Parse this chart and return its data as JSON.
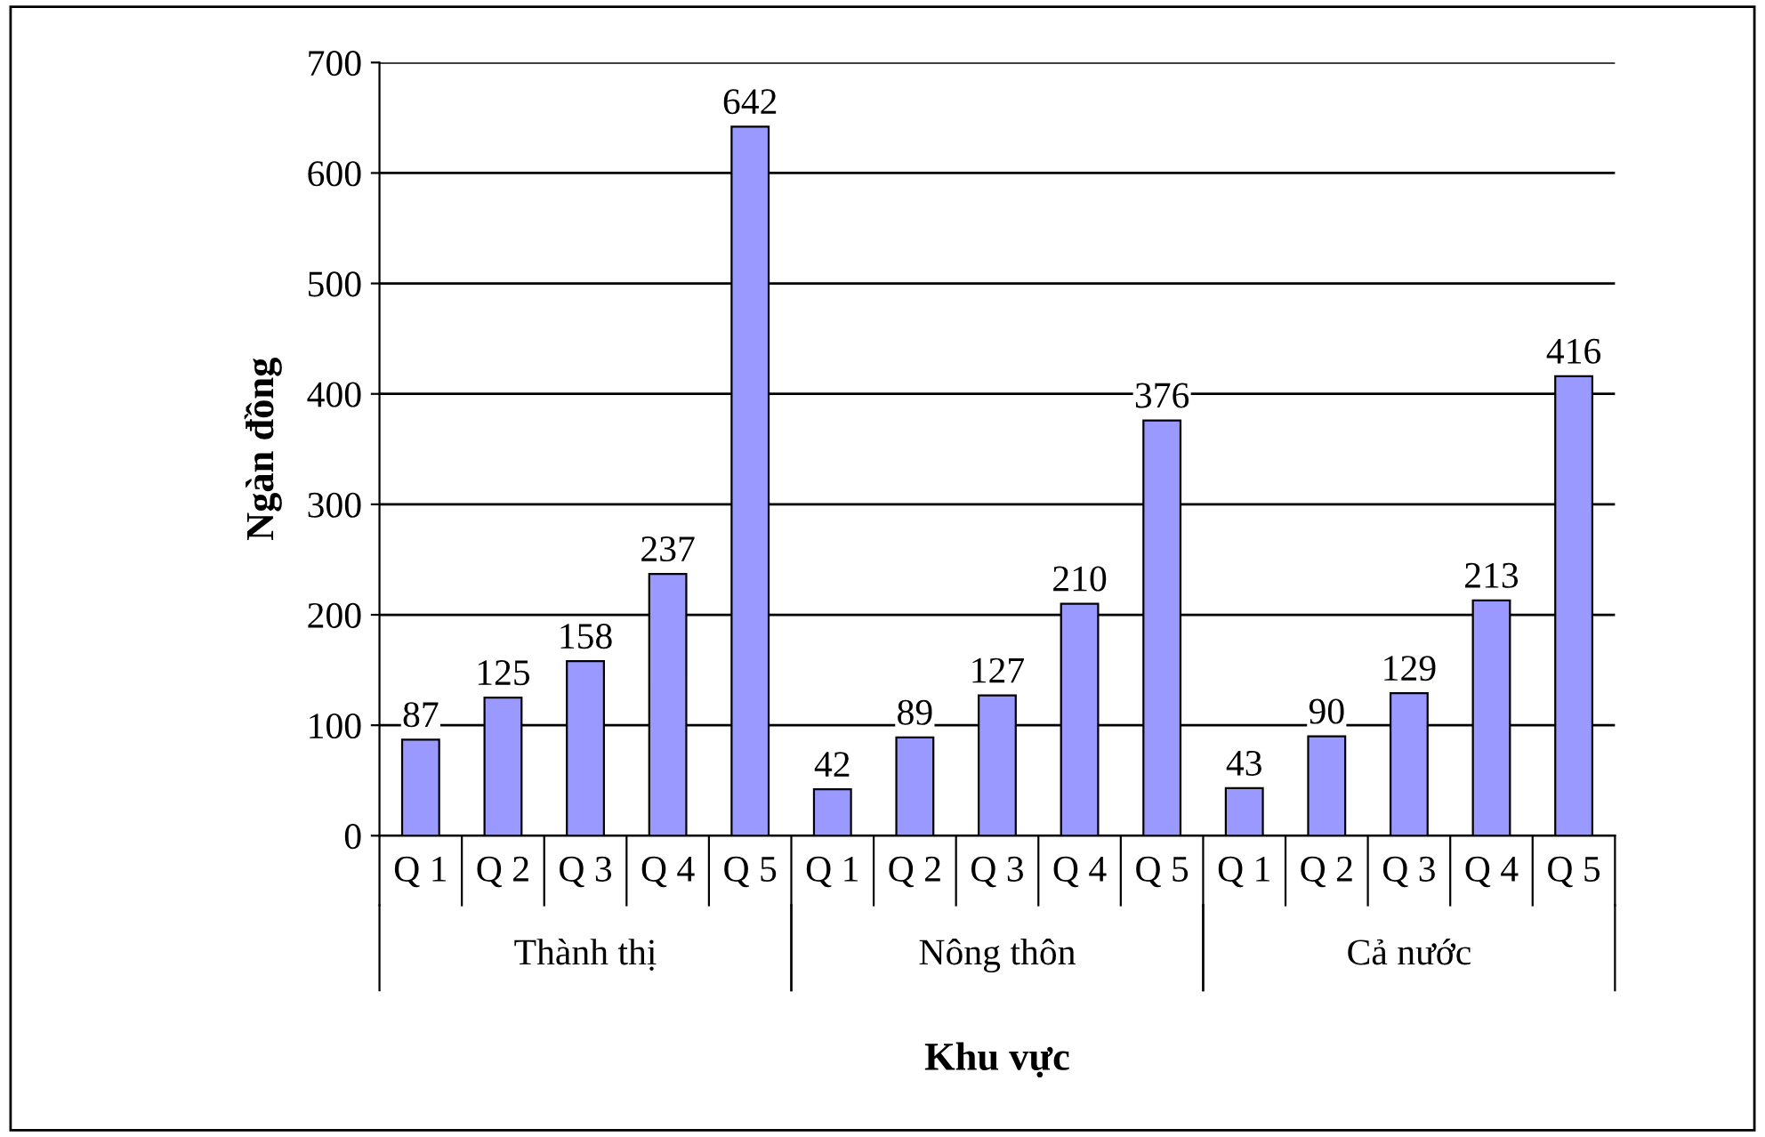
{
  "chart_data": {
    "type": "bar",
    "xlabel": "Khu vực",
    "ylabel": "Ngàn đồng",
    "categories": [
      "Q 1",
      "Q 2",
      "Q 3",
      "Q 4",
      "Q 5",
      "Q 1",
      "Q 2",
      "Q 3",
      "Q 4",
      "Q 5",
      "Q 1",
      "Q 2",
      "Q 3",
      "Q 4",
      "Q 5"
    ],
    "values": [
      87,
      125,
      158,
      237,
      642,
      42,
      89,
      127,
      210,
      376,
      43,
      90,
      129,
      213,
      416
    ],
    "color": "#9999ff",
    "annotations": [
      "Thành thị",
      "Nông thôn",
      "Cả nước"
    ],
    "ylim": [
      0,
      700
    ],
    "yticks": [
      0,
      100,
      200,
      300,
      400,
      500,
      600,
      700
    ],
    "grid": "y",
    "data_labels": true
  }
}
